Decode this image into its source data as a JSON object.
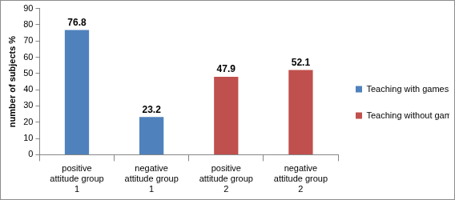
{
  "chart_data": {
    "type": "bar",
    "categories": [
      "positive attitude group 1",
      "negative attitude group 1",
      "positive attitude group 2",
      "negative attitude group 2"
    ],
    "series": [
      {
        "name": "Teaching with games",
        "color": "#4f81bd",
        "values": [
          76.8,
          23.2,
          null,
          null
        ]
      },
      {
        "name": "Teaching without games",
        "color": "#c0504d",
        "values": [
          null,
          null,
          47.9,
          52.1
        ]
      }
    ],
    "y_label": "number of subjects %",
    "ylim": [
      0,
      90
    ],
    "yticks": [
      0,
      10,
      20,
      30,
      40,
      50,
      60,
      70,
      80,
      90
    ],
    "grid": false,
    "legend": "right",
    "data_labels": true
  }
}
